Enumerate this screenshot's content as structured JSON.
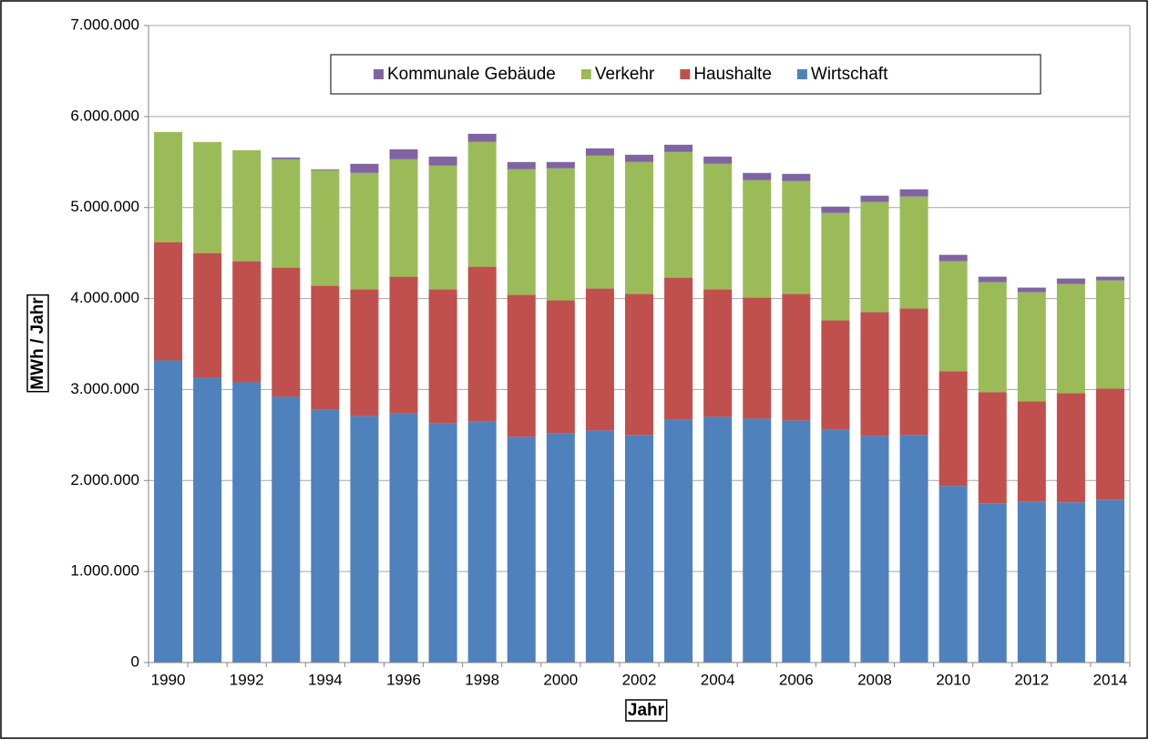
{
  "chart_data": {
    "type": "stacked_bar",
    "y_label": "MWh / Jahr",
    "x_label": "Jahr",
    "categories": [
      "1990",
      null,
      "1992",
      null,
      "1994",
      null,
      "1996",
      null,
      "1998",
      null,
      "2000",
      null,
      "2002",
      null,
      "2004",
      null,
      "2006",
      null,
      "2008",
      null,
      "2010",
      null,
      "2012",
      null,
      "2014"
    ],
    "series": [
      {
        "name": "Wirtschaft",
        "color": "#4f81bd",
        "values": [
          3320000,
          3130000,
          3080000,
          2920000,
          2780000,
          2710000,
          2740000,
          2630000,
          2650000,
          2480000,
          2520000,
          2550000,
          2500000,
          2670000,
          2700000,
          2680000,
          2660000,
          2560000,
          2490000,
          2500000,
          1940000,
          1750000,
          1770000,
          1760000,
          1790000
        ]
      },
      {
        "name": "Haushalte",
        "color": "#c0504d",
        "values": [
          1300000,
          1370000,
          1330000,
          1420000,
          1360000,
          1390000,
          1500000,
          1470000,
          1700000,
          1560000,
          1460000,
          1560000,
          1550000,
          1560000,
          1400000,
          1330000,
          1390000,
          1200000,
          1360000,
          1390000,
          1260000,
          1220000,
          1100000,
          1200000,
          1220000
        ]
      },
      {
        "name": "Verkehr",
        "color": "#9bbb59",
        "values": [
          1210000,
          1220000,
          1220000,
          1190000,
          1270000,
          1280000,
          1290000,
          1360000,
          1370000,
          1380000,
          1450000,
          1460000,
          1450000,
          1380000,
          1380000,
          1290000,
          1240000,
          1180000,
          1210000,
          1230000,
          1210000,
          1210000,
          1200000,
          1200000,
          1190000
        ]
      },
      {
        "name": "Kommunale Gebäude",
        "color": "#8064a2",
        "values": [
          0,
          0,
          0,
          20000,
          10000,
          100000,
          110000,
          100000,
          90000,
          80000,
          70000,
          80000,
          80000,
          80000,
          80000,
          80000,
          80000,
          70000,
          70000,
          80000,
          70000,
          60000,
          50000,
          60000,
          40000
        ]
      }
    ],
    "ylim": [
      0,
      7000000
    ],
    "yticks": [
      0,
      {
        "value": 1000000,
        "label": "1.000.000"
      },
      {
        "value": 2000000,
        "label": "2.000.000"
      },
      {
        "value": 3000000,
        "label": "3.000.000"
      },
      {
        "value": 4000000,
        "label": "4.000.000"
      },
      {
        "value": 5000000,
        "label": "5.000.000"
      },
      {
        "value": 6000000,
        "label": "6.000.000"
      },
      {
        "value": 7000000,
        "label": "7.000.000"
      }
    ],
    "grid": true
  }
}
